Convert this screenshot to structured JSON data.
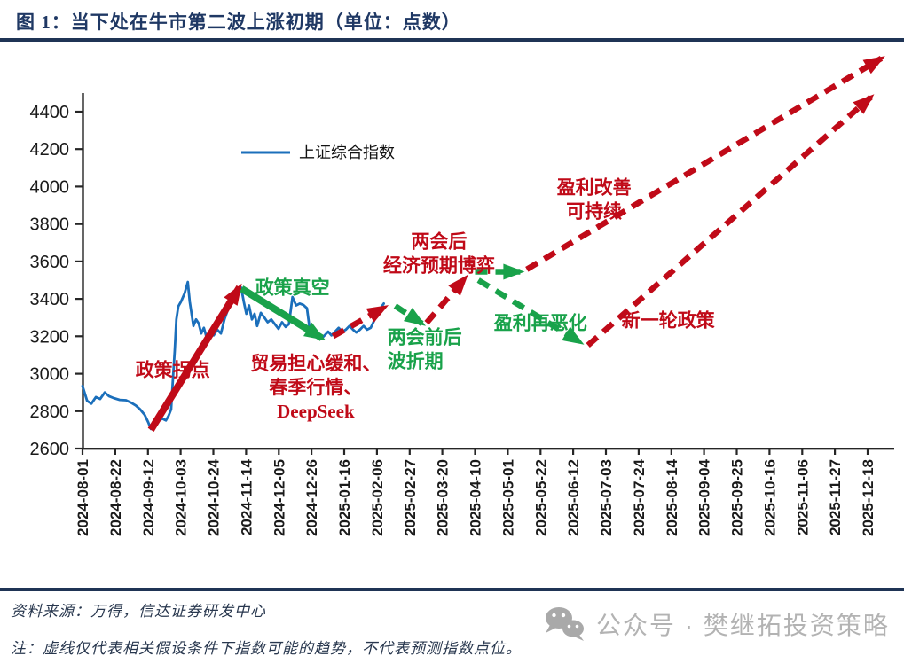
{
  "title": "图 1：当下处在牛市第二波上涨初期（单位：点数）",
  "legend": {
    "label": "上证综合指数"
  },
  "footer": {
    "source": "资料来源：万得，信达证券研发中心",
    "note": "注：虚线仅代表相关假设条件下指数可能的趋势，不代表预测指数点位。",
    "watermark": "公众号 · 樊继拓投资策略"
  },
  "colors": {
    "navy": "#1F3864",
    "axis": "#262626",
    "series_blue": "#1B6FBB",
    "annotation_red": "#C00A18",
    "annotation_green": "#19A24A",
    "watermark_gray": "#B3B3B3"
  },
  "chart_data": {
    "type": "line",
    "title": "当下处在牛市第二波上涨初期",
    "unit": "点数",
    "grid": false,
    "legend_position": "inside-top-left",
    "ylim": [
      2600,
      4400
    ],
    "y_ticks": [
      2600,
      2800,
      3000,
      3200,
      3400,
      3600,
      3800,
      4000,
      4200,
      4400
    ],
    "x_ticks": [
      "2024-08-01",
      "2024-08-22",
      "2024-09-12",
      "2024-10-03",
      "2024-10-24",
      "2024-11-14",
      "2024-12-05",
      "2024-12-26",
      "2025-01-16",
      "2025-02-06",
      "2025-02-27",
      "2025-03-20",
      "2025-04-10",
      "2025-05-01",
      "2025-05-22",
      "2025-06-12",
      "2025-07-03",
      "2025-07-24",
      "2025-08-14",
      "2025-09-04",
      "2025-09-25",
      "2025-10-16",
      "2025-11-06",
      "2025-11-27",
      "2025-12-18"
    ],
    "series": [
      {
        "name": "上证综合指数",
        "color": "#1B6FBB",
        "points": [
          [
            0.0,
            2935
          ],
          [
            0.14,
            2855
          ],
          [
            0.27,
            2840
          ],
          [
            0.41,
            2875
          ],
          [
            0.54,
            2865
          ],
          [
            0.68,
            2900
          ],
          [
            0.81,
            2880
          ],
          [
            0.95,
            2870
          ],
          [
            1.14,
            2860
          ],
          [
            1.33,
            2858
          ],
          [
            1.49,
            2845
          ],
          [
            1.63,
            2830
          ],
          [
            1.76,
            2810
          ],
          [
            1.9,
            2780
          ],
          [
            2.01,
            2740
          ],
          [
            2.09,
            2705
          ],
          [
            2.2,
            2725
          ],
          [
            2.3,
            2745
          ],
          [
            2.44,
            2760
          ],
          [
            2.55,
            2750
          ],
          [
            2.63,
            2775
          ],
          [
            2.71,
            2810
          ],
          [
            2.76,
            2960
          ],
          [
            2.82,
            3125
          ],
          [
            2.87,
            3290
          ],
          [
            2.93,
            3360
          ],
          [
            3.01,
            3385
          ],
          [
            3.12,
            3430
          ],
          [
            3.22,
            3490
          ],
          [
            3.28,
            3385
          ],
          [
            3.39,
            3255
          ],
          [
            3.47,
            3290
          ],
          [
            3.55,
            3270
          ],
          [
            3.63,
            3215
          ],
          [
            3.71,
            3245
          ],
          [
            3.79,
            3195
          ],
          [
            3.9,
            3225
          ],
          [
            4.01,
            3205
          ],
          [
            4.12,
            3235
          ],
          [
            4.23,
            3215
          ],
          [
            4.34,
            3290
          ],
          [
            4.44,
            3340
          ],
          [
            4.55,
            3375
          ],
          [
            4.66,
            3420
          ],
          [
            4.77,
            3440
          ],
          [
            4.85,
            3460
          ],
          [
            4.93,
            3385
          ],
          [
            5.01,
            3320
          ],
          [
            5.09,
            3365
          ],
          [
            5.18,
            3290
          ],
          [
            5.26,
            3320
          ],
          [
            5.34,
            3255
          ],
          [
            5.45,
            3325
          ],
          [
            5.56,
            3300
          ],
          [
            5.66,
            3275
          ],
          [
            5.77,
            3290
          ],
          [
            5.88,
            3265
          ],
          [
            5.99,
            3240
          ],
          [
            6.1,
            3275
          ],
          [
            6.21,
            3250
          ],
          [
            6.31,
            3265
          ],
          [
            6.42,
            3410
          ],
          [
            6.53,
            3365
          ],
          [
            6.64,
            3375
          ],
          [
            6.75,
            3368
          ],
          [
            6.86,
            3350
          ],
          [
            6.96,
            3220
          ],
          [
            7.07,
            3235
          ],
          [
            7.18,
            3205
          ],
          [
            7.29,
            3185
          ],
          [
            7.4,
            3205
          ],
          [
            7.51,
            3225
          ],
          [
            7.61,
            3205
          ],
          [
            7.72,
            3225
          ],
          [
            7.83,
            3245
          ],
          [
            7.94,
            3225
          ],
          [
            8.05,
            3235
          ],
          [
            8.16,
            3255
          ],
          [
            8.27,
            3235
          ],
          [
            8.37,
            3220
          ],
          [
            8.48,
            3235
          ],
          [
            8.59,
            3255
          ],
          [
            8.7,
            3235
          ],
          [
            8.81,
            3245
          ],
          [
            8.92,
            3285
          ],
          [
            9.02,
            3320
          ],
          [
            9.13,
            3355
          ],
          [
            9.21,
            3375
          ]
        ]
      }
    ],
    "annotations": {
      "arrows": [
        {
          "name": "policy-turning-point",
          "style": "solid",
          "color": "red",
          "from": [
            2.09,
            2700
          ],
          "to": [
            4.8,
            3462
          ]
        },
        {
          "name": "policy-vacuum",
          "style": "solid",
          "color": "green",
          "from": [
            4.86,
            3455
          ],
          "to": [
            7.32,
            3190
          ]
        },
        {
          "name": "pre-two-sessions-rise",
          "style": "dashed",
          "color": "red",
          "from": [
            7.66,
            3200
          ],
          "to": [
            9.24,
            3355
          ]
        },
        {
          "name": "two-sessions-dip",
          "style": "dashed",
          "color": "green",
          "from": [
            9.56,
            3362
          ],
          "to": [
            10.38,
            3268
          ]
        },
        {
          "name": "post-two-sessions-rise",
          "style": "dashed",
          "color": "red",
          "from": [
            10.52,
            3272
          ],
          "to": [
            11.7,
            3512
          ]
        },
        {
          "name": "expectation-game-flat",
          "style": "dashed",
          "color": "green",
          "from": [
            12.0,
            3545
          ],
          "to": [
            13.38,
            3545
          ]
        },
        {
          "name": "profit-improvement-rise",
          "style": "dashed",
          "color": "red",
          "from": [
            13.58,
            3558
          ],
          "to": [
            24.42,
            4685
          ]
        },
        {
          "name": "profit-deterioration-fall",
          "style": "dashed",
          "color": "green",
          "from": [
            12.1,
            3500
          ],
          "to": [
            15.22,
            3168
          ]
        },
        {
          "name": "new-policy-rise",
          "style": "dashed",
          "color": "red",
          "from": [
            15.45,
            3152
          ],
          "to": [
            24.1,
            4478
          ]
        }
      ],
      "labels": [
        {
          "name": "policy-turning-point",
          "color": "red",
          "align": "middle",
          "anchor": [
            2.76,
            3020
          ],
          "lines": [
            "政策拐点"
          ]
        },
        {
          "name": "policy-vacuum",
          "color": "green",
          "align": "middle",
          "anchor": [
            6.42,
            3460
          ],
          "lines": [
            "政策真空"
          ]
        },
        {
          "name": "spring-rally",
          "color": "red",
          "align": "middle",
          "anchor": [
            7.13,
            3055
          ],
          "lines": [
            "贸易担心缓和、",
            "春季行情、",
            "DeepSeek"
          ]
        },
        {
          "name": "two-sessions-period",
          "color": "green",
          "align": "start",
          "anchor": [
            9.32,
            3195
          ],
          "lines": [
            "两会前后",
            "波折期"
          ]
        },
        {
          "name": "post-two-sessions",
          "color": "red",
          "align": "middle",
          "anchor": [
            10.9,
            3705
          ],
          "lines": [
            "两会后",
            "经济预期博弈"
          ]
        },
        {
          "name": "profit-deterioration",
          "color": "green",
          "align": "middle",
          "anchor": [
            14.0,
            3270
          ],
          "lines": [
            "盈利再恶化"
          ]
        },
        {
          "name": "profit-improvement",
          "color": "red",
          "align": "middle",
          "anchor": [
            15.64,
            3995
          ],
          "lines": [
            "盈利改善",
            "可持续"
          ]
        },
        {
          "name": "new-policy",
          "color": "red",
          "align": "middle",
          "anchor": [
            17.9,
            3285
          ],
          "lines": [
            "新一轮政策"
          ]
        }
      ]
    }
  }
}
